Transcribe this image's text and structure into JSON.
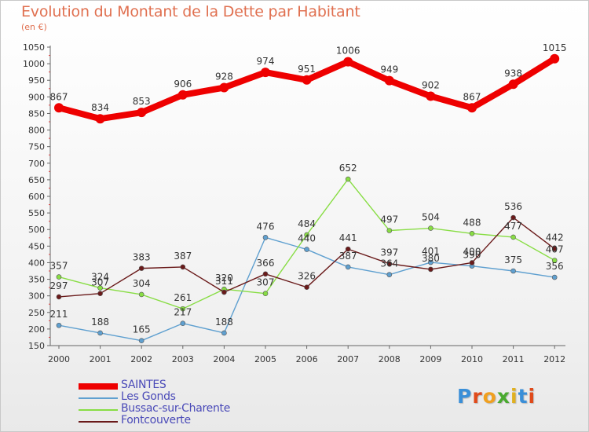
{
  "chart_data": {
    "type": "line",
    "title": "Evolution du Montant de la Dette par Habitant",
    "subtitle": "(en €)",
    "xlabel": "",
    "ylabel": "",
    "x": [
      "2000",
      "2001",
      "2002",
      "2003",
      "2004",
      "2005",
      "2006",
      "2007",
      "2008",
      "2009",
      "2010",
      "2011",
      "2012"
    ],
    "ylim": [
      150,
      1050
    ],
    "yticks": [
      150,
      200,
      250,
      300,
      350,
      400,
      450,
      500,
      550,
      600,
      650,
      700,
      750,
      800,
      850,
      900,
      950,
      1000,
      1050
    ],
    "grid": false,
    "legend_position": "bottom-left",
    "series": [
      {
        "name": "SAINTES",
        "color": "#ee0000",
        "values": [
          867,
          834,
          853,
          906,
          928,
          974,
          951,
          1006,
          949,
          902,
          867,
          938,
          1015
        ]
      },
      {
        "name": "Les Gonds",
        "color": "#5fa0d0",
        "values": [
          211,
          188,
          165,
          217,
          188,
          476,
          440,
          387,
          364,
          401,
          390,
          375,
          356
        ]
      },
      {
        "name": "Bussac-sur-Charente",
        "color": "#88dd44",
        "values": [
          357,
          324,
          304,
          261,
          320,
          307,
          484,
          652,
          497,
          504,
          488,
          477,
          407
        ]
      },
      {
        "name": "Fontcouverte",
        "color": "#6a1a1a",
        "values": [
          297,
          307,
          383,
          387,
          311,
          366,
          326,
          441,
          397,
          380,
          400,
          536,
          442
        ]
      }
    ],
    "data_labels": [
      [
        "867",
        "834",
        "853",
        "906",
        "928",
        "974",
        "951",
        "1006",
        "949",
        "902",
        "867",
        "938",
        "1015"
      ],
      [
        "211",
        "188",
        "165",
        "217",
        "188",
        "476",
        "440",
        "387",
        "364",
        "401",
        "390",
        "375",
        "356"
      ],
      [
        "357",
        "324",
        "304",
        "261",
        "320",
        "307",
        "484",
        "652",
        "497",
        "504",
        "488",
        "477",
        "407"
      ],
      [
        "297",
        "307",
        "383",
        "387",
        "311",
        "366",
        "326",
        "441",
        "397",
        "380",
        "400",
        "536",
        "442"
      ]
    ]
  },
  "logo": {
    "letters": [
      "P",
      "r",
      "o",
      "x",
      "i",
      "t",
      "i"
    ],
    "colors": [
      "#3a8fd8",
      "#e04a1a",
      "#f0a020",
      "#4aaa30",
      "#e0b020",
      "#3a8fd8",
      "#e04a1a"
    ]
  }
}
